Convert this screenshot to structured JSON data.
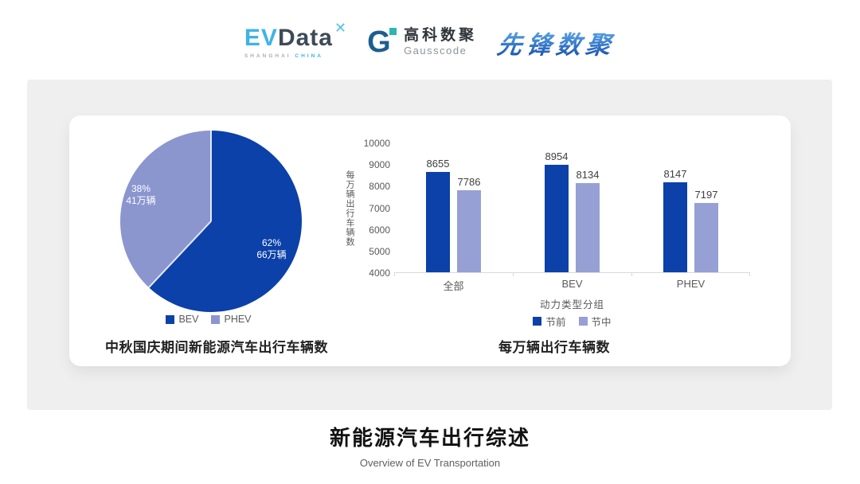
{
  "header": {
    "evdata": {
      "ev": "EV",
      "data": "Data",
      "mark": "✕",
      "sub1": "SHANGHAI",
      "sub2": "CHINA"
    },
    "gausscode": {
      "mark": "G",
      "cn": "高科数聚",
      "en": "Gausscode"
    },
    "xianfeng": {
      "text": "先锋数聚"
    }
  },
  "chart_data": [
    {
      "type": "pie",
      "title": "中秋国庆期间新能源汽车出行车辆数",
      "start_angle_deg": 0,
      "direction": "clockwise",
      "legend_position": "bottom",
      "slices": [
        {
          "label": "BEV",
          "percent": 62,
          "text": "62%",
          "subtext": "66万辆",
          "value_wan": 66,
          "color": "#0b41a8"
        },
        {
          "label": "PHEV",
          "percent": 38,
          "text": "38%",
          "subtext": "41万辆",
          "value_wan": 41,
          "color": "#8b96cf"
        }
      ]
    },
    {
      "type": "bar",
      "title": "每万辆出行车辆数",
      "xlabel": "动力类型分组",
      "ylabel": "每万辆出行车辆数",
      "ylim": [
        4000,
        10000
      ],
      "ytick_step": 1000,
      "grid": false,
      "legend_position": "bottom",
      "categories": [
        "全部",
        "BEV",
        "PHEV"
      ],
      "series": [
        {
          "name": "节前",
          "color": "#0b41a8",
          "values": [
            8655,
            8954,
            8147
          ]
        },
        {
          "name": "节中",
          "color": "#96a0d4",
          "values": [
            7786,
            8134,
            7197
          ]
        }
      ]
    }
  ],
  "footer": {
    "title": "新能源汽车出行综述",
    "subtitle": "Overview of EV Transportation"
  },
  "colors": {
    "panel_bg": "#efefef",
    "card_bg": "#ffffff",
    "dark_blue": "#0b41a8",
    "light_purple": "#8b96cf",
    "axis_gray": "#d9d9d9"
  }
}
